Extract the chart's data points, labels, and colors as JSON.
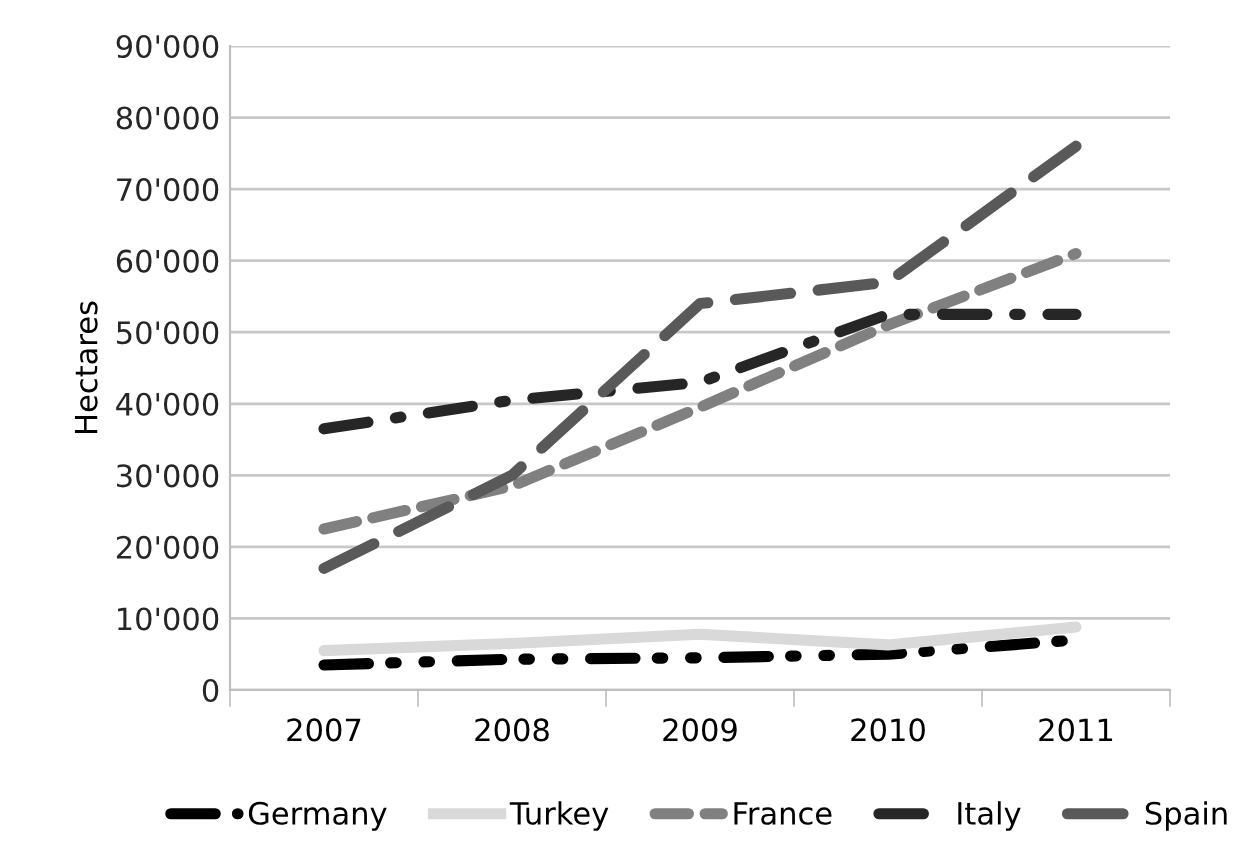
{
  "chart_data": {
    "type": "line",
    "ylabel": "Hectares",
    "categories": [
      "2007",
      "2008",
      "2009",
      "2010",
      "2011"
    ],
    "series": [
      {
        "name": "Germany",
        "color": "#000000",
        "line_style": "dashed",
        "values": [
          3500,
          4300,
          4500,
          5000,
          7000
        ]
      },
      {
        "name": "Turkey",
        "color": "#d9d9d9",
        "line_style": "solid",
        "values": [
          5500,
          6500,
          7800,
          6300,
          8800
        ]
      },
      {
        "name": "France",
        "color": "#808080",
        "line_style": "dashed",
        "values": [
          22500,
          28500,
          39500,
          51000,
          61000
        ]
      },
      {
        "name": "Italy",
        "color": "#262626",
        "line_style": "dashed",
        "values": [
          36500,
          40500,
          43000,
          52500,
          52500
        ]
      },
      {
        "name": "Spain",
        "color": "#595959",
        "line_style": "dashed",
        "values": [
          17000,
          30000,
          54000,
          57000,
          76000
        ]
      }
    ],
    "ylim": [
      0,
      90000
    ],
    "yticks": [
      {
        "value": 0,
        "label": "0"
      },
      {
        "value": 10000,
        "label": "10'000"
      },
      {
        "value": 20000,
        "label": "20'000"
      },
      {
        "value": 30000,
        "label": "30'000"
      },
      {
        "value": 40000,
        "label": "40'000"
      },
      {
        "value": 50000,
        "label": "50'000"
      },
      {
        "value": 60000,
        "label": "60'000"
      },
      {
        "value": 70000,
        "label": "70'000"
      },
      {
        "value": 80000,
        "label": "80'000"
      },
      {
        "value": 90000,
        "label": "90'000"
      }
    ],
    "grid": "y",
    "legend": "bottom",
    "marker": "none"
  }
}
